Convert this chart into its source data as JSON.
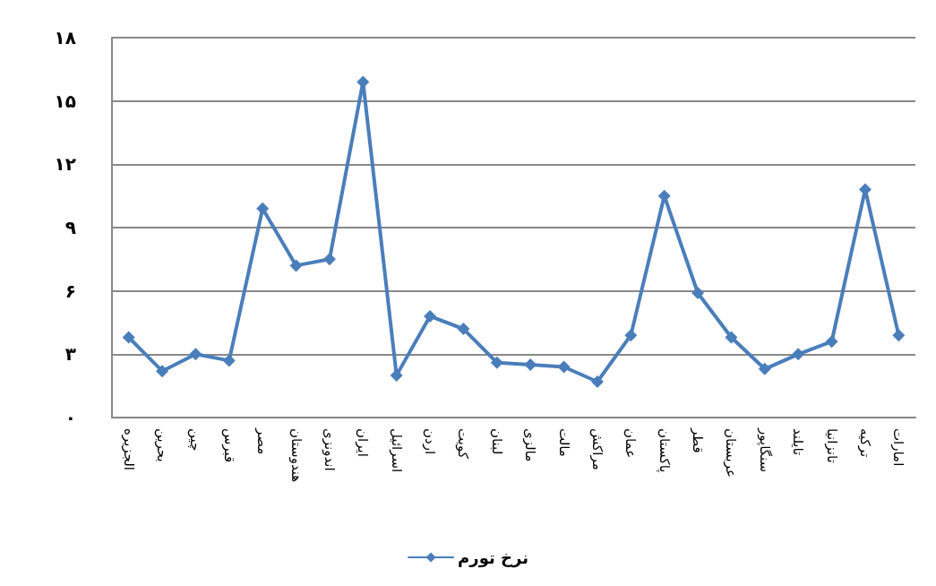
{
  "chart_data": {
    "type": "line",
    "categories": [
      "الجزیره",
      "بحرین",
      "چین",
      "قبرس",
      "مصر",
      "هندوستان",
      "اندونزی",
      "ایران",
      "اسرائیل",
      "اردن",
      "کویت",
      "لبنان",
      "مالزی",
      "مالت",
      "مراکش",
      "عمان",
      "پاکستان",
      "قطر",
      "عربستان",
      "سنگاپور",
      "تایلند",
      "تانزانیا",
      "ترکیه",
      "امارات"
    ],
    "series": [
      {
        "name": "نرخ تورم",
        "color": "#4a7ebb",
        "values": [
          3.8,
          2.2,
          3.0,
          2.7,
          9.9,
          7.2,
          7.5,
          15.9,
          2.0,
          4.8,
          4.2,
          2.6,
          2.5,
          2.4,
          1.7,
          3.9,
          10.5,
          5.9,
          3.8,
          2.3,
          3.0,
          3.6,
          10.8,
          3.9
        ]
      }
    ],
    "ylim": [
      0,
      18
    ],
    "yticks": [
      {
        "value": 0,
        "label": "۰"
      },
      {
        "value": 3,
        "label": "۳"
      },
      {
        "value": 6,
        "label": "۶"
      },
      {
        "value": 9,
        "label": "۹"
      },
      {
        "value": 12,
        "label": "۱۲"
      },
      {
        "value": 15,
        "label": "۱۵"
      },
      {
        "value": 18,
        "label": "۱۸"
      }
    ],
    "grid": "y",
    "legend": "bottom",
    "marker": "diamond",
    "line_style": "solid"
  }
}
